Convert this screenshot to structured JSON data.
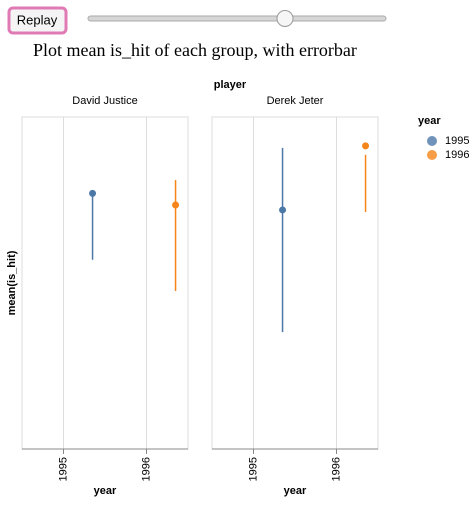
{
  "replay_button": "Replay",
  "heading": "Plot mean is_hit of each group, with errorbar",
  "facet_title": "player",
  "legend": {
    "title": "year",
    "entries": [
      {
        "label": "1995",
        "color": "#4c78a8"
      },
      {
        "label": "1996",
        "color": "#f58518"
      }
    ]
  },
  "chart_data": [
    {
      "type": "errorbar",
      "title": "David Justice",
      "x_label": "year",
      "y_label": "mean(is_hit)",
      "xlim": [
        1994.5,
        1996.5
      ],
      "xticks": [
        1995,
        1996
      ],
      "ylim": [
        0,
        1
      ],
      "grid": true,
      "series": [
        {
          "color": "#4c78a8",
          "x": [
            1995.35
          ],
          "values": [
            0.77
          ],
          "lower": [
            0.57
          ],
          "upper": [
            0.77
          ]
        },
        {
          "color": "#f58518",
          "x": [
            1996.35
          ],
          "values": [
            0.735
          ],
          "lower": [
            0.476
          ],
          "upper": [
            0.81
          ]
        }
      ]
    },
    {
      "type": "errorbar",
      "title": "Derek Jeter",
      "x_label": "year",
      "xlim": [
        1994.5,
        1996.5
      ],
      "xticks": [
        1995,
        1996
      ],
      "ylim": [
        0,
        1
      ],
      "grid": true,
      "series": [
        {
          "color": "#4c78a8",
          "x": [
            1995.35
          ],
          "values": [
            0.72
          ],
          "lower": [
            0.352
          ],
          "upper": [
            0.907
          ]
        },
        {
          "color": "#f58518",
          "x": [
            1996.35
          ],
          "values": [
            0.913
          ],
          "lower": [
            0.714
          ],
          "upper": [
            0.886
          ]
        }
      ]
    }
  ]
}
